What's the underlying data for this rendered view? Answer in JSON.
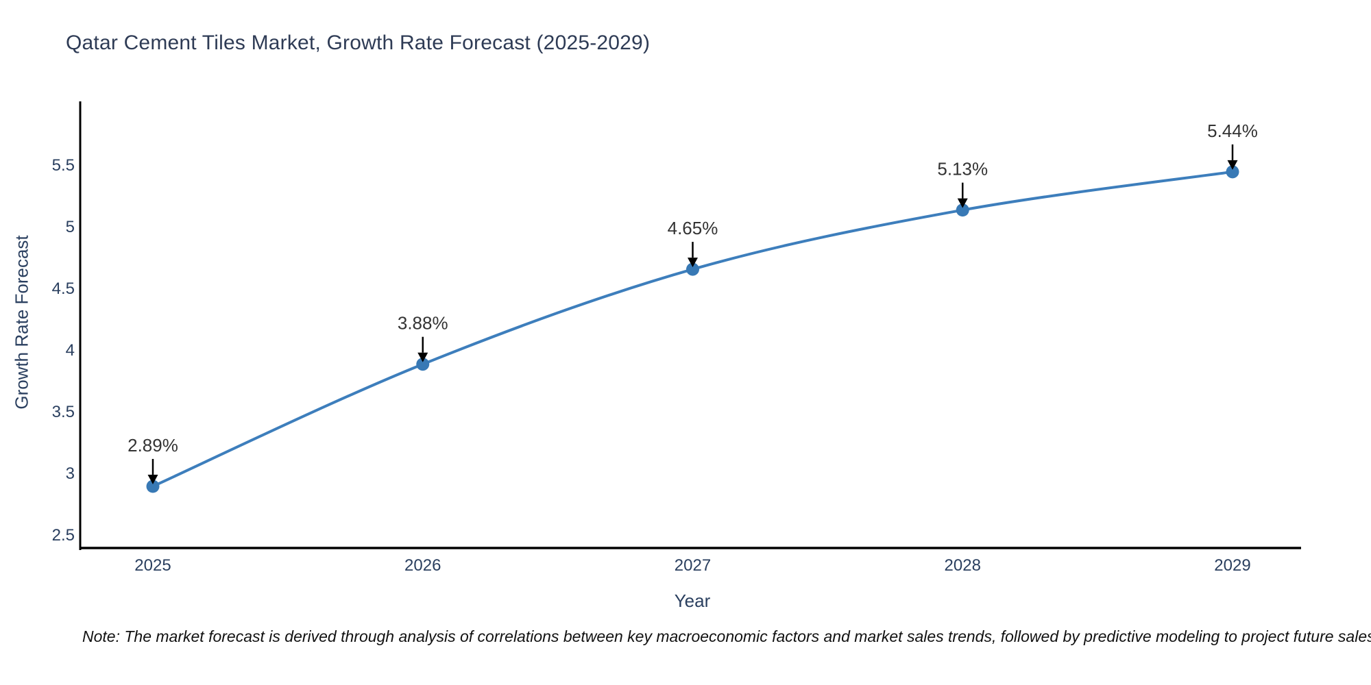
{
  "page": {
    "background": "#ffffff"
  },
  "note": {
    "text": "Note: The market forecast is derived through analysis of correlations between key macroeconomic factors and market sales trends, followed by predictive modeling to project future sales"
  },
  "chart_data": {
    "type": "line",
    "title": "Qatar Cement Tiles Market, Growth Rate Forecast (2025-2029)",
    "xlabel": "Year",
    "ylabel": "Growth Rate Forecast",
    "x": [
      2025,
      2026,
      2027,
      2028,
      2029
    ],
    "series": [
      {
        "name": "Growth Rate Forecast",
        "values": [
          2.89,
          3.88,
          4.65,
          5.13,
          5.44
        ]
      }
    ],
    "point_labels": [
      "2.89%",
      "3.88%",
      "4.65%",
      "5.13%",
      "5.44%"
    ],
    "xticks": [
      "2025",
      "2026",
      "2027",
      "2028",
      "2029"
    ],
    "yticks": [
      2.5,
      3,
      3.5,
      4,
      4.5,
      5,
      5.5
    ],
    "ylim": [
      2.39,
      6.0
    ],
    "grid": false,
    "legend": "none",
    "line_shape": "spline",
    "colors": {
      "line": "#3d7ebc",
      "marker": "#3879b5",
      "axis": "#000000",
      "tick_text": "#2a3f5f",
      "annotation_text": "#333333",
      "annotation_arrow": "#000000",
      "title_text": "#2e3b55",
      "note_text": "#111111"
    }
  }
}
